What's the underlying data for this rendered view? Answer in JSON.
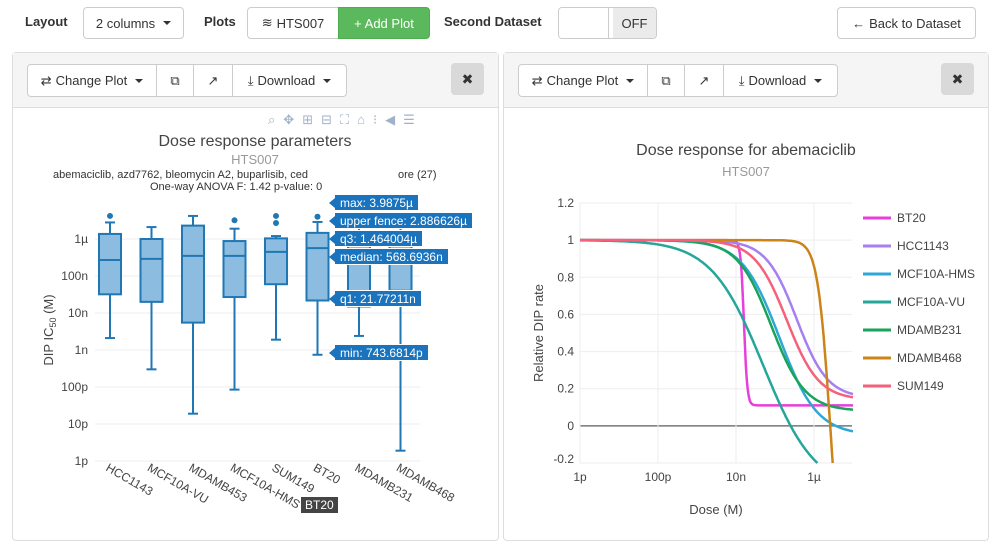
{
  "toolbar": {
    "layout_label": "Layout",
    "layout_value": "2 columns",
    "plots_label": "Plots",
    "dataset_button": "HTS007",
    "add_plot": "+ Add Plot",
    "second_dataset_label": "Second Dataset",
    "toggle_state": "OFF",
    "back_button": "Back to Dataset"
  },
  "panels": [
    {
      "change_plot": "Change Plot",
      "download": "Download",
      "close": "✖"
    },
    {
      "change_plot": "Change Plot",
      "download": "Download",
      "close": "✖"
    }
  ],
  "colors": {
    "add_plot": "#5cb85c",
    "box": "#1f77b4",
    "tooltip": "#1a73bd"
  },
  "modebar_icons": [
    "zoom-icon",
    "pan-icon",
    "zoom-in-icon",
    "zoom-out-icon",
    "autoscale-icon",
    "reset-axes-icon",
    "spike-lines-icon",
    "hover-closest-icon",
    "hover-compare-icon"
  ],
  "chart_data": [
    {
      "type": "box",
      "title": "Dose response parameters",
      "subtitle": "HTS007",
      "annotation_line1": "abemaciclib, azd7762, bleomycin A2, buparlisib, ced",
      "annotation_line1_end": "ore (27)",
      "annotation_line2": "One-way ANOVA F: 1.42 p-value: 0",
      "ylabel": "DIP IC",
      "ylabel_sub": "50",
      "ylabel_unit": " (M)",
      "yscale": "log",
      "ylim": [
        1e-12,
        1e-05
      ],
      "yticks": [
        {
          "v": 1e-06,
          "t": "1µ"
        },
        {
          "v": 1e-07,
          "t": "100n"
        },
        {
          "v": 1e-08,
          "t": "10n"
        },
        {
          "v": 1e-09,
          "t": "1n"
        },
        {
          "v": 1e-10,
          "t": "100p"
        },
        {
          "v": 1e-11,
          "t": "10p"
        },
        {
          "v": 1e-12,
          "t": "1p"
        }
      ],
      "categories": [
        "HCC1143",
        "MCF10A-VU",
        "MDAMB453",
        "MCF10A-HMS",
        "SUM149",
        "BT20",
        "MDAMB231",
        "MDAMB468"
      ],
      "boxes": [
        {
          "lower": 2.1e-09,
          "q1": 3.2e-08,
          "median": 2.7e-07,
          "q3": 1.37e-06,
          "upper": 2.8e-06,
          "outliers": [
            4.2e-06
          ]
        },
        {
          "lower": 3e-10,
          "q1": 2e-08,
          "median": 2.9e-07,
          "q3": 1e-06,
          "upper": 2.1e-06,
          "outliers": []
        },
        {
          "lower": 1.9e-11,
          "q1": 5.5e-09,
          "median": 3.5e-07,
          "q3": 2.3e-06,
          "upper": 4.2e-06,
          "outliers": []
        },
        {
          "lower": 8.5e-11,
          "q1": 2.7e-08,
          "median": 3.5e-07,
          "q3": 8.8e-07,
          "upper": 1.9e-06,
          "outliers": [
            3.2e-06
          ]
        },
        {
          "lower": 1.9e-09,
          "q1": 6e-08,
          "median": 4.5e-07,
          "q3": 1.04e-06,
          "upper": 1.2e-06,
          "outliers": [
            2.7e-06,
            4.2e-06
          ]
        },
        {
          "lower": 7.436814e-10,
          "q1": 2.177211e-08,
          "median": 5.686936e-07,
          "q3": 1.464004e-06,
          "upper": 2.886626e-06,
          "outliers": [
            3.9875e-06
          ]
        },
        {
          "lower": 2.4e-09,
          "q1": 1.5e-08,
          "median": 4e-07,
          "q3": 1.5e-06,
          "upper": 3e-06,
          "outliers": []
        },
        {
          "lower": 1.9e-12,
          "q1": 4e-08,
          "median": 4e-07,
          "q3": 1.5e-06,
          "upper": 3e-06,
          "outliers": []
        }
      ],
      "hover": {
        "category": "BT20",
        "max": "max: 3.9875µ",
        "upper_fence": "upper fence: 2.886626µ",
        "q3": "q3: 1.464004µ",
        "median": "median: 568.6936n",
        "q1": "q1: 21.77211n",
        "min": "min: 743.6814p"
      }
    },
    {
      "type": "line",
      "title": "Dose response for abemaciclib",
      "subtitle": "HTS007",
      "xlabel": "Dose (M)",
      "ylabel": "Relative DIP rate",
      "xscale": "log",
      "xlim": [
        1e-12,
        1e-05
      ],
      "ylim": [
        -0.2,
        1.2
      ],
      "xticks": [
        {
          "v": 1e-12,
          "t": "1p"
        },
        {
          "v": 1e-10,
          "t": "100p"
        },
        {
          "v": 1e-08,
          "t": "10n"
        },
        {
          "v": 1e-06,
          "t": "1µ"
        }
      ],
      "yticks": [
        -0.2,
        0,
        0.2,
        0.4,
        0.6,
        0.8,
        1,
        1.2
      ],
      "legend": "right",
      "series": [
        {
          "name": "BT20",
          "color": "#e83fdc",
          "emax": 0.11,
          "ec50": 1.6e-08,
          "hill": 10
        },
        {
          "name": "HCC1143",
          "color": "#a77ff0",
          "emax": 0.15,
          "ec50": 3.6e-07,
          "hill": 1.1
        },
        {
          "name": "MCF10A-HMS",
          "color": "#2fa7d6",
          "emax": -0.05,
          "ec50": 1.3e-07,
          "hill": 0.9
        },
        {
          "name": "MCF10A-VU",
          "color": "#26a69a",
          "emax": -0.35,
          "ec50": 5e-08,
          "hill": 0.65
        },
        {
          "name": "MDAMB231",
          "color": "#1aa35a",
          "emax": 0.08,
          "ec50": 8e-08,
          "hill": 1.0
        },
        {
          "name": "MDAMB468",
          "color": "#cc8418",
          "emax": -1,
          "ec50": 2.6e-06,
          "hill": 2.7
        },
        {
          "name": "SUM149",
          "color": "#f5617a",
          "emax": 0.14,
          "ec50": 2e-07,
          "hill": 1.05
        }
      ]
    }
  ]
}
